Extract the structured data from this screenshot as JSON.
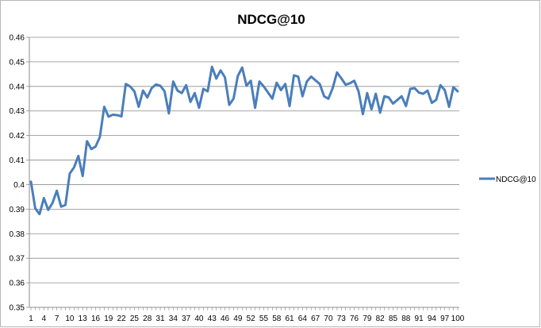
{
  "chart_data": {
    "type": "line",
    "title": "NDCG@10",
    "xlabel": "",
    "ylabel": "",
    "ylim": [
      0.35,
      0.46
    ],
    "y_ticks": [
      "0.35",
      "0.36",
      "0.37",
      "0.38",
      "0.39",
      "0.4",
      "0.41",
      "0.42",
      "0.43",
      "0.44",
      "0.45",
      "0.46"
    ],
    "x_tick_labels": [
      "1",
      "4",
      "7",
      "10",
      "13",
      "16",
      "19",
      "22",
      "25",
      "28",
      "31",
      "34",
      "37",
      "40",
      "43",
      "46",
      "49",
      "52",
      "55",
      "58",
      "61",
      "64",
      "67",
      "70",
      "73",
      "76",
      "79",
      "82",
      "85",
      "88",
      "91",
      "94",
      "97",
      "100"
    ],
    "grid": true,
    "legend": "right",
    "color": "#4a7ebb",
    "series": [
      {
        "name": "NDCG@10",
        "x": [
          1,
          2,
          3,
          4,
          5,
          6,
          7,
          8,
          9,
          10,
          11,
          12,
          13,
          14,
          15,
          16,
          17,
          18,
          19,
          20,
          21,
          22,
          23,
          24,
          25,
          26,
          27,
          28,
          29,
          30,
          31,
          32,
          33,
          34,
          35,
          36,
          37,
          38,
          39,
          40,
          41,
          42,
          43,
          44,
          45,
          46,
          47,
          48,
          49,
          50,
          51,
          52,
          53,
          54,
          55,
          56,
          57,
          58,
          59,
          60,
          61,
          62,
          63,
          64,
          65,
          66,
          67,
          68,
          69,
          70,
          71,
          72,
          73,
          74,
          75,
          76,
          77,
          78,
          79,
          80,
          81,
          82,
          83,
          84,
          85,
          86,
          87,
          88,
          89,
          90,
          91,
          92,
          93,
          94,
          95,
          96,
          97,
          98,
          99,
          100
        ],
        "values": [
          0.4012,
          0.3903,
          0.388,
          0.3945,
          0.3897,
          0.3925,
          0.3975,
          0.391,
          0.3917,
          0.4045,
          0.407,
          0.4117,
          0.4035,
          0.4177,
          0.4145,
          0.4155,
          0.4195,
          0.4317,
          0.4277,
          0.4285,
          0.4283,
          0.4278,
          0.441,
          0.44,
          0.438,
          0.4317,
          0.4383,
          0.4355,
          0.4393,
          0.4408,
          0.4403,
          0.438,
          0.429,
          0.442,
          0.4383,
          0.4373,
          0.4405,
          0.4337,
          0.4373,
          0.4313,
          0.439,
          0.438,
          0.448,
          0.4432,
          0.4465,
          0.4437,
          0.4325,
          0.435,
          0.4443,
          0.4477,
          0.4403,
          0.4423,
          0.4313,
          0.442,
          0.44,
          0.4375,
          0.435,
          0.4415,
          0.4385,
          0.441,
          0.432,
          0.4445,
          0.444,
          0.436,
          0.442,
          0.444,
          0.4425,
          0.441,
          0.436,
          0.435,
          0.4393,
          0.4457,
          0.4433,
          0.4407,
          0.4413,
          0.4423,
          0.438,
          0.4287,
          0.4373,
          0.4307,
          0.437,
          0.4293,
          0.436,
          0.4355,
          0.433,
          0.4345,
          0.436,
          0.432,
          0.439,
          0.4393,
          0.4375,
          0.437,
          0.4383,
          0.4333,
          0.4345,
          0.4405,
          0.4385,
          0.4317,
          0.4397,
          0.438
        ]
      }
    ]
  }
}
